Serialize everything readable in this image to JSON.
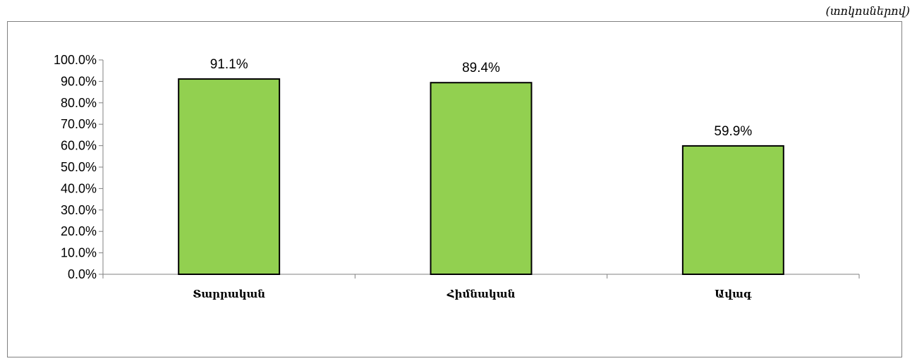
{
  "unit_note": "(տոկոսներով)",
  "chart_data": {
    "type": "bar",
    "categories": [
      "Տարրական",
      "Հիմնական",
      "Ավագ"
    ],
    "values": [
      91.1,
      89.4,
      59.9
    ],
    "value_labels": [
      "91.1%",
      "89.4%",
      "59.9%"
    ],
    "y_ticks": [
      "0.0%",
      "10.0%",
      "20.0%",
      "30.0%",
      "40.0%",
      "50.0%",
      "60.0%",
      "70.0%",
      "80.0%",
      "90.0%",
      "100.0%"
    ],
    "ylim": [
      0,
      100
    ],
    "grid": false,
    "legend": "none",
    "bar_color": "#92d050",
    "bar_stroke": "#000000"
  }
}
